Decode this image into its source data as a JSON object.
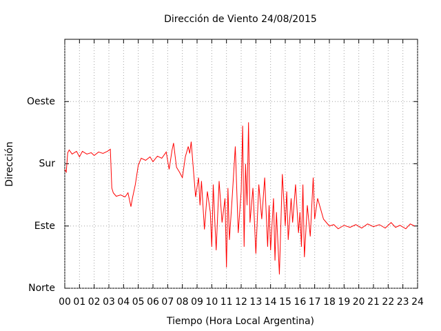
{
  "chart_data": {
    "type": "line",
    "title": "Dirección de Viento 24/08/2015",
    "x_label": "Tiempo (Hora Local Argentina)",
    "y_label": "Dirección",
    "grid": true,
    "xlim": [
      0,
      24
    ],
    "ylim": [
      0,
      360
    ],
    "xticks": [
      {
        "value": 0,
        "label": "00"
      },
      {
        "value": 1,
        "label": "01"
      },
      {
        "value": 2,
        "label": "02"
      },
      {
        "value": 3,
        "label": "03"
      },
      {
        "value": 4,
        "label": "04"
      },
      {
        "value": 5,
        "label": "05"
      },
      {
        "value": 6,
        "label": "06"
      },
      {
        "value": 7,
        "label": "07"
      },
      {
        "value": 8,
        "label": "08"
      },
      {
        "value": 9,
        "label": "09"
      },
      10,
      11,
      12,
      13,
      14,
      15,
      16,
      17,
      18,
      19,
      20,
      21,
      22,
      23,
      24
    ],
    "yticks": [
      {
        "value": 0,
        "label": "Norte"
      },
      {
        "value": 90,
        "label": "Este"
      },
      {
        "value": 180,
        "label": "Sur"
      },
      {
        "value": 270,
        "label": "Oeste"
      }
    ],
    "x": [
      0,
      0.1,
      0.2,
      0.3,
      0.5,
      0.8,
      1.0,
      1.2,
      1.5,
      1.8,
      2.0,
      2.3,
      2.6,
      2.9,
      3.1,
      3.2,
      3.3,
      3.5,
      3.8,
      4.1,
      4.3,
      4.5,
      4.6,
      4.8,
      5.0,
      5.2,
      5.5,
      5.8,
      6.0,
      6.3,
      6.6,
      6.9,
      7.1,
      7.3,
      7.4,
      7.6,
      7.8,
      8.0,
      8.2,
      8.4,
      8.5,
      8.6,
      8.7,
      8.9,
      9.1,
      9.2,
      9.3,
      9.5,
      9.7,
      9.9,
      10.0,
      10.1,
      10.2,
      10.3,
      10.5,
      10.7,
      10.9,
      11.0,
      11.1,
      11.2,
      11.4,
      11.6,
      11.8,
      12.0,
      12.1,
      12.2,
      12.3,
      12.4,
      12.5,
      12.6,
      12.8,
      13.0,
      13.2,
      13.4,
      13.6,
      13.8,
      13.9,
      14.0,
      14.2,
      14.3,
      14.4,
      14.6,
      14.8,
      15.0,
      15.1,
      15.2,
      15.4,
      15.5,
      15.7,
      15.9,
      16.0,
      16.1,
      16.2,
      16.3,
      16.5,
      16.7,
      16.9,
      17.0,
      17.2,
      17.4,
      17.6,
      17.8,
      18.0,
      18.3,
      18.6,
      19.0,
      19.4,
      19.8,
      20.2,
      20.6,
      21.0,
      21.4,
      21.8,
      22.2,
      22.5,
      22.8,
      23.2,
      23.5,
      23.8
    ],
    "series": [
      {
        "color": "#ff0000",
        "values": [
          172,
          168,
          196,
          200,
          194,
          198,
          190,
          198,
          194,
          196,
          192,
          197,
          195,
          198,
          201,
          145,
          138,
          133,
          135,
          132,
          138,
          118,
          130,
          150,
          178,
          188,
          185,
          190,
          183,
          191,
          188,
          197,
          172,
          200,
          210,
          175,
          168,
          160,
          190,
          205,
          195,
          212,
          185,
          132,
          160,
          120,
          155,
          85,
          140,
          110,
          60,
          150,
          100,
          55,
          155,
          95,
          130,
          30,
          145,
          70,
          135,
          205,
          80,
          140,
          235,
          60,
          180,
          120,
          240,
          95,
          145,
          50,
          150,
          100,
          160,
          60,
          120,
          55,
          130,
          40,
          110,
          20,
          165,
          90,
          140,
          70,
          130,
          95,
          150,
          80,
          110,
          60,
          150,
          45,
          120,
          75,
          160,
          100,
          130,
          115,
          100,
          95,
          90,
          92,
          86,
          91,
          88,
          92,
          87,
          93,
          89,
          92,
          87,
          95,
          88,
          91,
          86,
          93,
          90
        ]
      }
    ]
  }
}
